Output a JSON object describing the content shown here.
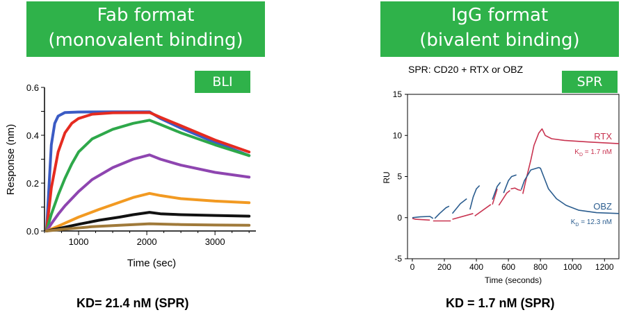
{
  "left_panel": {
    "title_line1": "Fab format",
    "title_line2": "(monovalent binding)",
    "badge": "BLI",
    "kd_text": "KD= 21.4 nM (SPR)"
  },
  "right_panel": {
    "title_line1": "IgG format",
    "title_line2": "(bivalent binding)",
    "badge": "SPR",
    "caption": "SPR: CD20 + RTX or OBZ",
    "kd_text": "KD = 1.7 nM (SPR)"
  },
  "colors": {
    "header_green": "#2fb24a",
    "rtx": "#c8324f",
    "obz": "#2a5c8e"
  },
  "chart_data": [
    {
      "type": "line",
      "xlabel": "Time (sec)",
      "ylabel": "Response (nm)",
      "xlim": [
        500,
        3600
      ],
      "ylim": [
        0,
        0.6
      ],
      "xticks": [
        1000,
        2000,
        3000
      ],
      "yticks": [
        "0.0",
        "0.2",
        "0.4",
        "0.6"
      ],
      "series": [
        {
          "color": "#3b5bc4",
          "points": [
            [
              530,
              0
            ],
            [
              600,
              0.36
            ],
            [
              650,
              0.45
            ],
            [
              700,
              0.48
            ],
            [
              800,
              0.495
            ],
            [
              1000,
              0.497
            ],
            [
              1500,
              0.498
            ],
            [
              2040,
              0.498
            ],
            [
              2200,
              0.47
            ],
            [
              2500,
              0.43
            ],
            [
              3000,
              0.37
            ],
            [
              3500,
              0.315
            ]
          ]
        },
        {
          "color": "#e52b20",
          "points": [
            [
              530,
              0
            ],
            [
              600,
              0.18
            ],
            [
              700,
              0.33
            ],
            [
              800,
              0.41
            ],
            [
              900,
              0.45
            ],
            [
              1000,
              0.47
            ],
            [
              1200,
              0.488
            ],
            [
              1500,
              0.494
            ],
            [
              2040,
              0.495
            ],
            [
              2200,
              0.475
            ],
            [
              2500,
              0.44
            ],
            [
              3000,
              0.38
            ],
            [
              3500,
              0.33
            ]
          ]
        },
        {
          "color": "#2ea84a",
          "points": [
            [
              530,
              0
            ],
            [
              600,
              0.07
            ],
            [
              700,
              0.15
            ],
            [
              800,
              0.22
            ],
            [
              900,
              0.28
            ],
            [
              1000,
              0.33
            ],
            [
              1200,
              0.385
            ],
            [
              1500,
              0.425
            ],
            [
              1800,
              0.45
            ],
            [
              2040,
              0.463
            ],
            [
              2200,
              0.445
            ],
            [
              2500,
              0.41
            ],
            [
              3000,
              0.36
            ],
            [
              3500,
              0.315
            ]
          ]
        },
        {
          "color": "#8e45b0",
          "points": [
            [
              530,
              0
            ],
            [
              600,
              0.03
            ],
            [
              700,
              0.07
            ],
            [
              800,
              0.105
            ],
            [
              1000,
              0.165
            ],
            [
              1200,
              0.215
            ],
            [
              1500,
              0.265
            ],
            [
              1800,
              0.3
            ],
            [
              2040,
              0.318
            ],
            [
              2200,
              0.3
            ],
            [
              2500,
              0.275
            ],
            [
              3000,
              0.245
            ],
            [
              3500,
              0.225
            ]
          ]
        },
        {
          "color": "#f29a22",
          "points": [
            [
              530,
              0
            ],
            [
              700,
              0.02
            ],
            [
              1000,
              0.058
            ],
            [
              1300,
              0.09
            ],
            [
              1600,
              0.12
            ],
            [
              1800,
              0.14
            ],
            [
              2040,
              0.157
            ],
            [
              2200,
              0.148
            ],
            [
              2500,
              0.135
            ],
            [
              3000,
              0.125
            ],
            [
              3500,
              0.118
            ]
          ]
        },
        {
          "color": "#111111",
          "points": [
            [
              530,
              0
            ],
            [
              700,
              0.01
            ],
            [
              1000,
              0.028
            ],
            [
              1300,
              0.045
            ],
            [
              1600,
              0.058
            ],
            [
              1800,
              0.068
            ],
            [
              2040,
              0.078
            ],
            [
              2200,
              0.072
            ],
            [
              2500,
              0.068
            ],
            [
              3000,
              0.065
            ],
            [
              3500,
              0.062
            ]
          ]
        },
        {
          "color": "#a07a3a",
          "points": [
            [
              530,
              0
            ],
            [
              800,
              0.008
            ],
            [
              1200,
              0.018
            ],
            [
              1600,
              0.024
            ],
            [
              2040,
              0.03
            ],
            [
              2500,
              0.027
            ],
            [
              3000,
              0.025
            ],
            [
              3500,
              0.024
            ]
          ]
        }
      ]
    },
    {
      "type": "line",
      "xlabel": "Time (seconds)",
      "ylabel": "RU",
      "xlim": [
        -30,
        1290
      ],
      "ylim": [
        -5,
        15
      ],
      "xticks": [
        0,
        200,
        400,
        600,
        800,
        1000,
        1200
      ],
      "yticks": [
        -5,
        0,
        5,
        10,
        15
      ],
      "series": [
        {
          "name": "RTX",
          "kd_label": "K",
          "kd_sub": "D",
          "kd_value": "= 1.7 nM",
          "color": "#c8324f",
          "segments": [
            [
              [
                0,
                -0.1
              ],
              [
                20,
                -0.2
              ],
              [
                110,
                -0.3
              ]
            ],
            [
              [
                130,
                -0.4
              ],
              [
                240,
                -0.4
              ]
            ],
            [
              [
                250,
                -0.2
              ],
              [
                380,
                0.5
              ]
            ],
            [
              [
                390,
                0.2
              ],
              [
                490,
                1.6
              ]
            ],
            [
              [
                500,
                1.6
              ],
              [
                530,
                3.5
              ]
            ],
            [
              [
                540,
                1.5
              ],
              [
                590,
                3.0
              ],
              [
                610,
                3.3
              ]
            ],
            [
              [
                615,
                3.5
              ],
              [
                640,
                3.6
              ],
              [
                660,
                3.4
              ],
              [
                680,
                3.3
              ]
            ],
            [
              [
                690,
                2.9
              ],
              [
                710,
                4.6
              ],
              [
                740,
                7.0
              ],
              [
                760,
                8.8
              ],
              [
                790,
                10.3
              ],
              [
                810,
                10.8
              ],
              [
                830,
                10.0
              ],
              [
                870,
                9.6
              ],
              [
                950,
                9.4
              ],
              [
                1100,
                9.2
              ],
              [
                1290,
                9.0
              ]
            ]
          ]
        },
        {
          "name": "OBZ",
          "kd_label": "K",
          "kd_sub": "D",
          "kd_value": "= 12.3 nM",
          "color": "#2a5c8e",
          "segments": [
            [
              [
                0,
                0
              ],
              [
                50,
                0.1
              ],
              [
                110,
                0.15
              ],
              [
                130,
                -0.1
              ]
            ],
            [
              [
                140,
                -0.1
              ],
              [
                170,
                0.5
              ],
              [
                210,
                1.2
              ],
              [
                230,
                1.4
              ]
            ],
            [
              [
                250,
                0.5
              ],
              [
                300,
                1.7
              ],
              [
                340,
                2.3
              ]
            ],
            [
              [
                360,
                1.0
              ],
              [
                380,
                2.5
              ],
              [
                400,
                3.5
              ],
              [
                420,
                3.9
              ]
            ],
            [
              [
                430,
                3.5
              ]
            ],
            [
              [
                500,
                2.2
              ],
              [
                530,
                3.8
              ],
              [
                550,
                4.3
              ]
            ],
            [
              [
                570,
                3.0
              ],
              [
                600,
                4.5
              ],
              [
                620,
                5.0
              ],
              [
                650,
                5.2
              ]
            ],
            [
              [
                680,
                3.4
              ],
              [
                700,
                4.5
              ],
              [
                740,
                5.8
              ],
              [
                790,
                6.1
              ],
              [
                800,
                6.0
              ],
              [
                820,
                5.0
              ],
              [
                850,
                3.5
              ],
              [
                900,
                2.3
              ],
              [
                960,
                1.5
              ],
              [
                1040,
                0.9
              ],
              [
                1150,
                0.6
              ],
              [
                1290,
                0.5
              ]
            ]
          ]
        }
      ]
    }
  ]
}
